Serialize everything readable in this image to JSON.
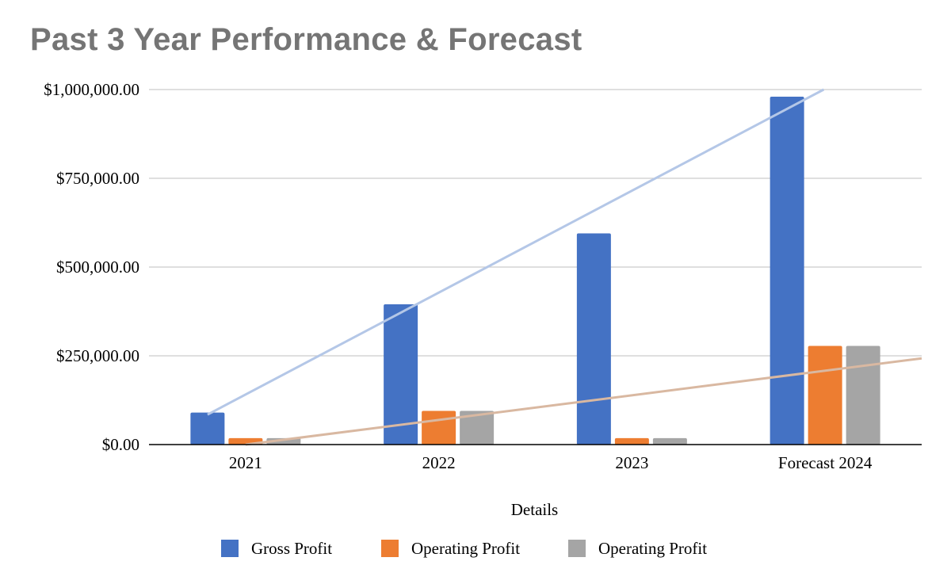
{
  "chart_data": {
    "type": "bar",
    "title": "Past 3 Year Performance & Forecast",
    "xlabel": "Details",
    "ylabel": "",
    "categories": [
      "2021",
      "2022",
      "2023",
      "Forecast 2024"
    ],
    "series": [
      {
        "name": "Gross Profit",
        "color": "#4472c4",
        "values": [
          90000,
          395000,
          595000,
          980000
        ]
      },
      {
        "name": "Operating Profit",
        "color": "#ed7d31",
        "values": [
          18000,
          95000,
          18000,
          278000
        ]
      },
      {
        "name": "Operating Profit",
        "color": "#a5a5a5",
        "values": [
          18000,
          95000,
          18000,
          278000
        ]
      }
    ],
    "trendlines": [
      {
        "series_index": 0,
        "color": "#b4c7e7",
        "type": "linear"
      },
      {
        "series_index": 1,
        "color": "#d9b8a1",
        "type": "linear"
      }
    ],
    "ylim": [
      0,
      1000000
    ],
    "yticks": [
      {
        "value": 0,
        "label": "$0.00"
      },
      {
        "value": 250000,
        "label": "$250,000.00"
      },
      {
        "value": 500000,
        "label": "$500,000.00"
      },
      {
        "value": 750000,
        "label": "$750,000.00"
      },
      {
        "value": 1000000,
        "label": "$1,000,000.00"
      }
    ],
    "grid": true,
    "legend_position": "bottom",
    "title_color": "#757575",
    "gridline_color": "#cccccc",
    "axis_color": "#000000"
  }
}
